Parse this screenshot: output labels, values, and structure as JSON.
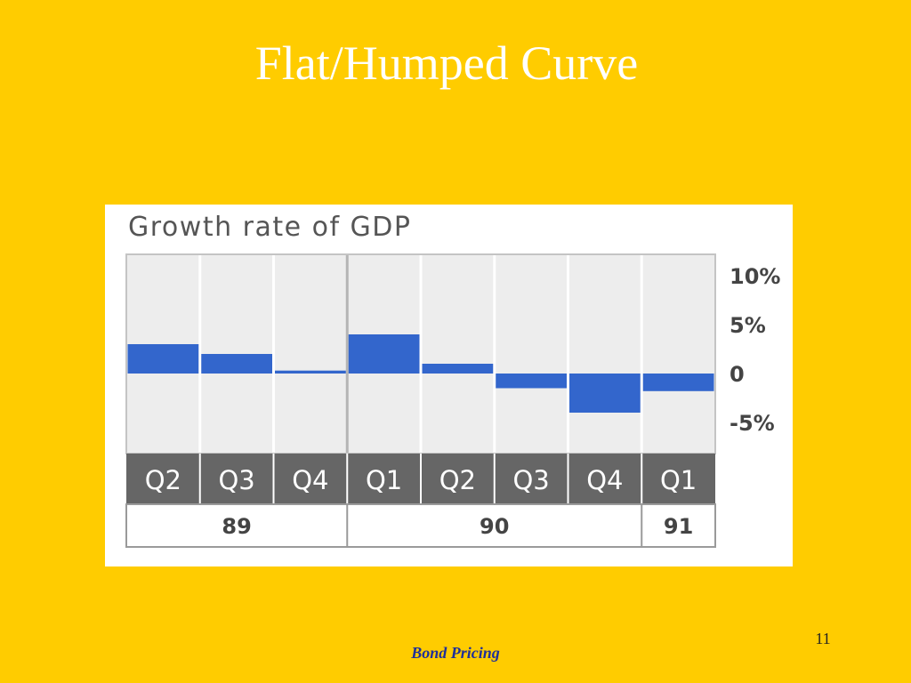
{
  "slide": {
    "title": "Flat/Humped Curve",
    "footer": "Bond Pricing",
    "page_number": "11"
  },
  "chart_data": {
    "type": "bar",
    "title": "Growth rate of GDP",
    "categories": [
      "Q2",
      "Q3",
      "Q4",
      "Q1",
      "Q2",
      "Q3",
      "Q4",
      "Q1"
    ],
    "values": [
      3.0,
      2.0,
      0.3,
      4.0,
      1.0,
      -1.5,
      -4.0,
      -1.8
    ],
    "year_groups": [
      {
        "label": "89",
        "span": 3
      },
      {
        "label": "90",
        "span": 4
      },
      {
        "label": "91",
        "span": 1
      }
    ],
    "y_ticks": [
      {
        "value": 10,
        "label": "10%"
      },
      {
        "value": 5,
        "label": "5%"
      },
      {
        "value": 0,
        "label": "0"
      },
      {
        "value": -5,
        "label": "-5%"
      }
    ],
    "ylim": [
      -8,
      12
    ],
    "colors": {
      "bar": "#3366CC",
      "plot_bg": "#EDEDED",
      "grid": "#C4C4C4",
      "quarter_band": "#666666",
      "quarter_text": "#FFFFFF",
      "axis_text": "#444444"
    }
  }
}
